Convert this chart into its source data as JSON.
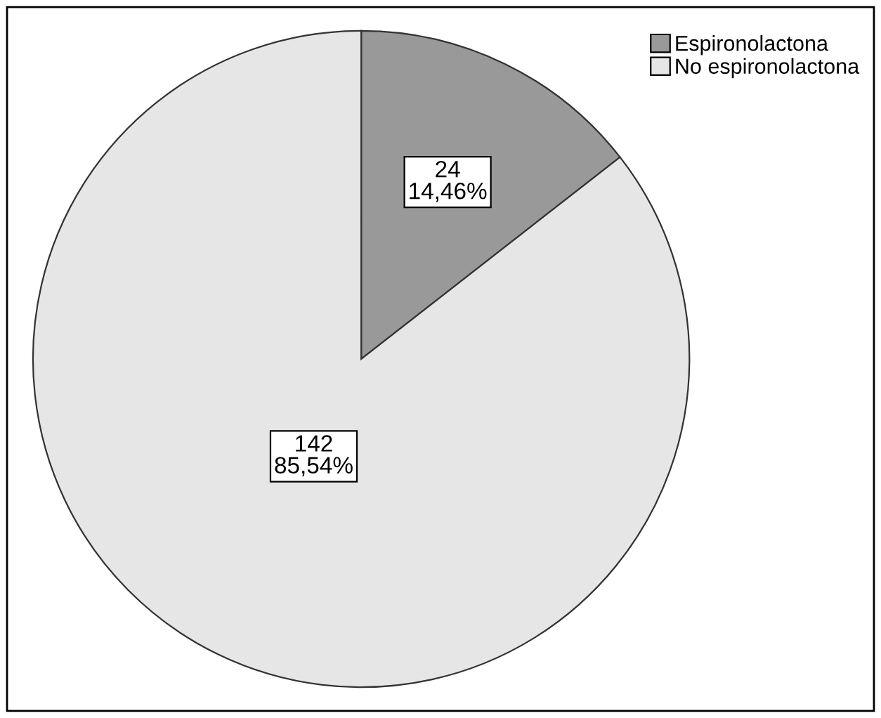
{
  "chart_data": {
    "type": "pie",
    "categories": [
      "Espironolactona",
      "No espironolactona"
    ],
    "values": [
      24,
      142
    ],
    "colors": [
      "#999999",
      "#e6e6e6"
    ],
    "value_labels": [
      "24\n14,46%",
      "142\n85,54%"
    ],
    "legend": "top right"
  }
}
